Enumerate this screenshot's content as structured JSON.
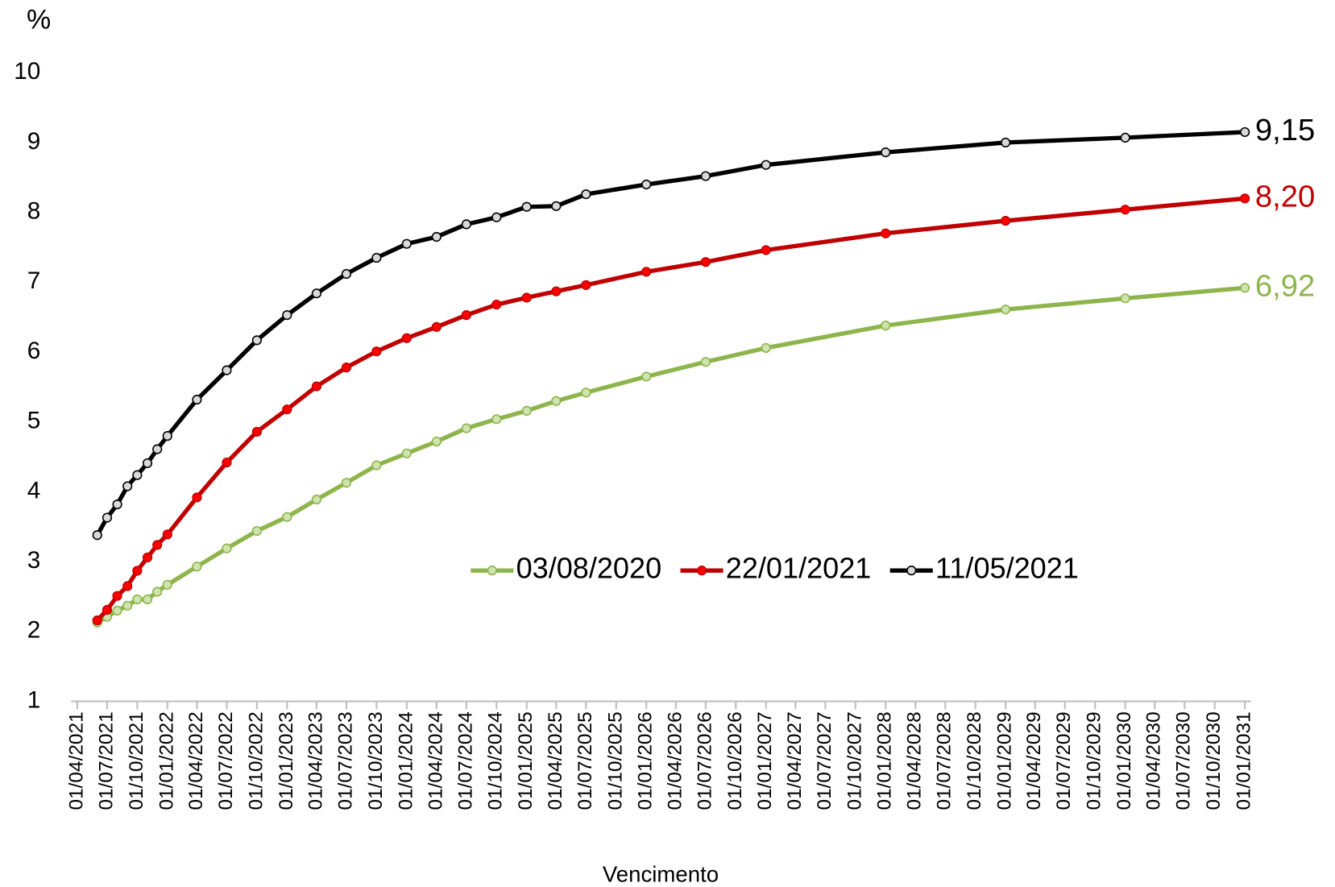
{
  "chart_data": {
    "type": "line",
    "y_label": "%",
    "x_label": "Vencimento",
    "x": [
      "01/06/2021",
      "01/07/2021",
      "01/08/2021",
      "01/09/2021",
      "01/10/2021",
      "01/11/2021",
      "01/12/2021",
      "01/01/2022",
      "01/04/2022",
      "01/07/2022",
      "01/10/2022",
      "01/01/2023",
      "01/04/2023",
      "01/07/2023",
      "01/10/2023",
      "01/01/2024",
      "01/04/2024",
      "01/07/2024",
      "01/10/2024",
      "01/01/2025",
      "01/04/2025",
      "01/07/2025",
      "01/01/2026",
      "01/07/2026",
      "01/01/2027",
      "01/01/2028",
      "01/01/2029",
      "01/01/2030",
      "01/01/2031"
    ],
    "series": [
      {
        "name": "03/08/2020",
        "color": "#8db54b",
        "marker_fill": "#cfe3ae",
        "values": [
          2.13,
          2.21,
          2.3,
          2.37,
          2.46,
          2.46,
          2.57,
          2.67,
          2.93,
          3.19,
          3.44,
          3.64,
          3.89,
          4.13,
          4.38,
          4.55,
          4.72,
          4.91,
          5.04,
          5.16,
          5.3,
          5.42,
          5.65,
          5.86,
          6.06,
          6.38,
          6.61,
          6.77,
          6.92
        ],
        "value_labels": [
          null,
          null,
          null,
          null,
          null,
          null,
          null,
          null,
          null,
          null,
          null,
          null,
          null,
          null,
          null,
          null,
          null,
          null,
          null,
          null,
          null,
          null,
          null,
          null,
          null,
          null,
          null,
          null,
          "6,92"
        ]
      },
      {
        "name": "22/01/2021",
        "color": "#c00000",
        "marker_fill": "#ff0000",
        "values": [
          2.16,
          2.31,
          2.51,
          2.65,
          2.87,
          3.06,
          3.24,
          3.39,
          3.92,
          4.42,
          4.86,
          5.18,
          5.51,
          5.78,
          6.01,
          6.2,
          6.36,
          6.53,
          6.68,
          6.78,
          6.87,
          6.96,
          7.15,
          7.29,
          7.46,
          7.7,
          7.88,
          8.04,
          8.2
        ],
        "value_labels": [
          null,
          null,
          null,
          null,
          null,
          null,
          null,
          null,
          null,
          null,
          null,
          null,
          null,
          null,
          null,
          null,
          null,
          null,
          null,
          null,
          null,
          null,
          null,
          null,
          null,
          null,
          null,
          null,
          "8,20"
        ]
      },
      {
        "name": "11/05/2021",
        "color": "#000000",
        "marker_fill": "#d9d9d9",
        "values": [
          3.38,
          3.63,
          3.82,
          4.08,
          4.24,
          4.41,
          4.61,
          4.8,
          5.32,
          5.74,
          6.17,
          6.53,
          6.84,
          7.12,
          7.35,
          7.55,
          7.65,
          7.83,
          7.93,
          8.08,
          8.09,
          8.26,
          8.4,
          8.52,
          8.68,
          8.86,
          9.0,
          9.07,
          9.15
        ],
        "value_labels": [
          null,
          null,
          null,
          null,
          null,
          null,
          null,
          null,
          null,
          null,
          null,
          null,
          null,
          null,
          null,
          null,
          null,
          null,
          null,
          null,
          null,
          null,
          null,
          null,
          null,
          null,
          null,
          null,
          "9,15"
        ]
      }
    ],
    "xlim": [
      "01/04/2021",
      "01/01/2031"
    ],
    "xticks": [
      "01/04/2021",
      "01/07/2021",
      "01/10/2021",
      "01/01/2022",
      "01/04/2022",
      "01/07/2022",
      "01/10/2022",
      "01/01/2023",
      "01/04/2023",
      "01/07/2023",
      "01/10/2023",
      "01/01/2024",
      "01/04/2024",
      "01/07/2024",
      "01/10/2024",
      "01/01/2025",
      "01/04/2025",
      "01/07/2025",
      "01/10/2025",
      "01/01/2026",
      "01/04/2026",
      "01/07/2026",
      "01/10/2026",
      "01/01/2027",
      "01/04/2027",
      "01/07/2027",
      "01/10/2027",
      "01/01/2028",
      "01/04/2028",
      "01/07/2028",
      "01/10/2028",
      "01/01/2029",
      "01/04/2029",
      "01/07/2029",
      "01/10/2029",
      "01/01/2030",
      "01/04/2030",
      "01/07/2030",
      "01/10/2030",
      "01/01/2031"
    ],
    "ylim": [
      1,
      10
    ],
    "yticks": [
      1,
      2,
      3,
      4,
      5,
      6,
      7,
      8,
      9,
      10
    ],
    "grid": false,
    "legend_position": "center"
  }
}
